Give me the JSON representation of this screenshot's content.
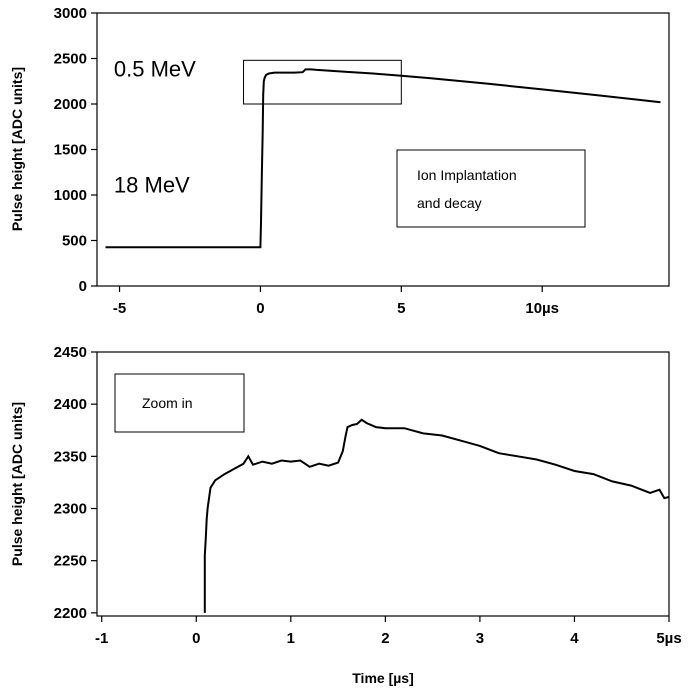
{
  "chart_data": [
    {
      "type": "line",
      "title": "",
      "xlabel": "",
      "ylabel": "Pulse height  [ADC units]",
      "xlim": [
        -5.8,
        14.5
      ],
      "ylim": [
        0,
        3000
      ],
      "grid": false,
      "x_ticks": [
        {
          "value": -5,
          "label": "-5"
        },
        {
          "value": 0,
          "label": "0"
        },
        {
          "value": 5,
          "label": "5"
        },
        {
          "value": 10,
          "label": "10µs"
        }
      ],
      "y_ticks": [
        {
          "value": 0,
          "label": "0"
        },
        {
          "value": 500,
          "label": "500"
        },
        {
          "value": 1000,
          "label": "1000"
        },
        {
          "value": 1500,
          "label": "1500"
        },
        {
          "value": 2000,
          "label": "2000"
        },
        {
          "value": 2500,
          "label": "2500"
        },
        {
          "value": 3000,
          "label": "3000"
        }
      ],
      "series": [
        {
          "color": "#000000",
          "x": [
            -5.5,
            -3.0,
            -1.0,
            0.0,
            0.02,
            0.05,
            0.08,
            0.1,
            0.12,
            0.15,
            0.2,
            0.3,
            0.5,
            0.8,
            1.2,
            1.5,
            1.6,
            1.8,
            2.0,
            3.0,
            4.0,
            5.0,
            6.0,
            8.0,
            10.0,
            12.0,
            14.2
          ],
          "y": [
            425,
            425,
            425,
            425,
            700,
            1200,
            1700,
            2100,
            2250,
            2290,
            2320,
            2335,
            2345,
            2345,
            2345,
            2350,
            2380,
            2380,
            2375,
            2355,
            2335,
            2310,
            2285,
            2225,
            2160,
            2095,
            2020
          ]
        }
      ],
      "annotations": [
        {
          "text": "0.5 MeV",
          "x": -5.2,
          "y": 2300
        },
        {
          "text": "18 MeV",
          "x": -5.2,
          "y": 1030
        }
      ],
      "zoom_box": {
        "x0": -0.6,
        "x1": 5.0,
        "y0": 2000,
        "y1": 2480
      },
      "legend_box": {
        "lines": [
          "Ion Implantation",
          "and decay"
        ]
      }
    },
    {
      "type": "line",
      "title": "",
      "xlabel": "Time  [µs]",
      "ylabel": "Pulse height   [ADC units]",
      "xlim": [
        -1.05,
        5.0
      ],
      "ylim": [
        2197,
        2450
      ],
      "grid": false,
      "x_ticks": [
        {
          "value": -1,
          "label": "-1"
        },
        {
          "value": 0,
          "label": "0"
        },
        {
          "value": 1,
          "label": "1"
        },
        {
          "value": 2,
          "label": "2"
        },
        {
          "value": 3,
          "label": "3"
        },
        {
          "value": 4,
          "label": "4"
        },
        {
          "value": 5,
          "label": "5µs"
        }
      ],
      "y_ticks": [
        {
          "value": 2200,
          "label": "2200"
        },
        {
          "value": 2250,
          "label": "2250"
        },
        {
          "value": 2300,
          "label": "2300"
        },
        {
          "value": 2350,
          "label": "2350"
        },
        {
          "value": 2400,
          "label": "2400"
        },
        {
          "value": 2450,
          "label": "2450"
        }
      ],
      "series": [
        {
          "color": "#000000",
          "x": [
            0.09,
            0.09,
            0.1,
            0.11,
            0.12,
            0.15,
            0.2,
            0.3,
            0.4,
            0.5,
            0.55,
            0.6,
            0.7,
            0.8,
            0.9,
            1.0,
            1.1,
            1.2,
            1.3,
            1.4,
            1.5,
            1.55,
            1.58,
            1.6,
            1.65,
            1.7,
            1.75,
            1.8,
            1.9,
            2.0,
            2.2,
            2.4,
            2.6,
            2.8,
            3.0,
            3.2,
            3.4,
            3.6,
            3.8,
            4.0,
            4.2,
            4.4,
            4.6,
            4.8,
            4.9,
            4.95,
            5.0
          ],
          "y": [
            2200,
            2255,
            2270,
            2290,
            2300,
            2320,
            2327,
            2333,
            2338,
            2343,
            2350,
            2342,
            2345,
            2343,
            2346,
            2345,
            2346,
            2340,
            2343,
            2341,
            2344,
            2355,
            2370,
            2378,
            2380,
            2381,
            2385,
            2382,
            2378,
            2377,
            2377,
            2372,
            2370,
            2365,
            2360,
            2353,
            2350,
            2347,
            2342,
            2336,
            2333,
            2326,
            2322,
            2315,
            2318,
            2310,
            2311
          ]
        }
      ],
      "legend_box": {
        "lines": [
          "Zoom in"
        ]
      }
    }
  ]
}
